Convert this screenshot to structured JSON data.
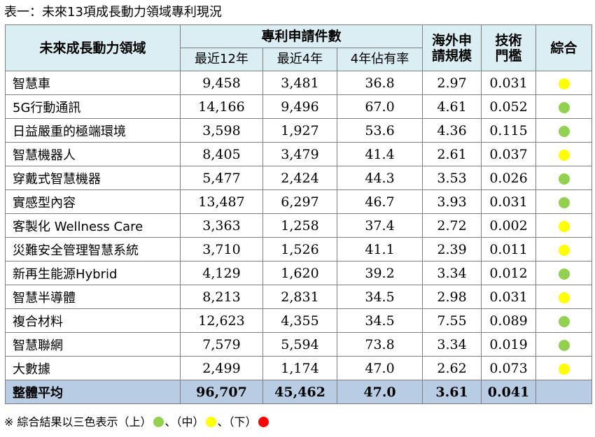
{
  "title": "表一：未來13項成長動力領域專利現況",
  "header": {
    "field": "未來成長動力領域",
    "patents": "專利申請件數",
    "recent12": "最近12年",
    "recent4": "最近4年",
    "share4": "4年佔有率",
    "overseas": "海外申請規模",
    "tech": "技術門檻",
    "overall": "綜合"
  },
  "colors": {
    "green": "#92d050",
    "yellow": "#ffff00",
    "red": "#ff0000"
  },
  "rows": [
    {
      "name": "智慧車",
      "r12": "9,458",
      "r4": "3,481",
      "share": "36.8",
      "overseas": "2.97",
      "tech": "0.031",
      "rating": "yellow"
    },
    {
      "name": "5G行動通訊",
      "r12": "14,166",
      "r4": "9,496",
      "share": "67.0",
      "overseas": "4.61",
      "tech": "0.052",
      "rating": "green"
    },
    {
      "name": "日益嚴重的極端環境",
      "r12": "3,598",
      "r4": "1,927",
      "share": "53.6",
      "overseas": "4.36",
      "tech": "0.115",
      "rating": "green"
    },
    {
      "name": "智慧機器人",
      "r12": "8,405",
      "r4": "3,479",
      "share": "41.4",
      "overseas": "2.61",
      "tech": "0.037",
      "rating": "yellow"
    },
    {
      "name": "穿戴式智慧機器",
      "r12": "5,477",
      "r4": "2,424",
      "share": "44.3",
      "overseas": "3.53",
      "tech": "0.026",
      "rating": "green"
    },
    {
      "name": "實感型內容",
      "r12": "13,487",
      "r4": "6,297",
      "share": "46.7",
      "overseas": "3.93",
      "tech": "0.031",
      "rating": "green"
    },
    {
      "name": "客製化  Wellness  Care",
      "r12": "3,363",
      "r4": "1,258",
      "share": "37.4",
      "overseas": "2.72",
      "tech": "0.002",
      "rating": "yellow"
    },
    {
      "name": "災難安全管理智慧系統",
      "r12": "3,710",
      "r4": "1,526",
      "share": "41.1",
      "overseas": "2.39",
      "tech": "0.011",
      "rating": "yellow"
    },
    {
      "name": "新再生能源Hybrid",
      "r12": "4,129",
      "r4": "1,620",
      "share": "39.2",
      "overseas": "3.34",
      "tech": "0.012",
      "rating": "green"
    },
    {
      "name": "智慧半導體",
      "r12": "8,213",
      "r4": "2,831",
      "share": "34.5",
      "overseas": "2.98",
      "tech": "0.031",
      "rating": "yellow"
    },
    {
      "name": "複合材料",
      "r12": "12,623",
      "r4": "4,355",
      "share": "34.5",
      "overseas": "7.55",
      "tech": "0.089",
      "rating": "green"
    },
    {
      "name": "智慧聯網",
      "r12": "7,579",
      "r4": "5,594",
      "share": "73.8",
      "overseas": "3.34",
      "tech": "0.019",
      "rating": "green"
    },
    {
      "name": "大數據",
      "r12": "2,499",
      "r4": "1,174",
      "share": "47.0",
      "overseas": "2.62",
      "tech": "0.073",
      "rating": "yellow"
    }
  ],
  "total": {
    "name": "整體平均",
    "r12": "96,707",
    "r4": "45,462",
    "share": "47.0",
    "overseas": "3.61",
    "tech": "0.041"
  },
  "footnote": {
    "prefix": "※ 綜合結果以三色表示（上）",
    "sep1": "、（中）",
    "sep2": "、（下）"
  }
}
